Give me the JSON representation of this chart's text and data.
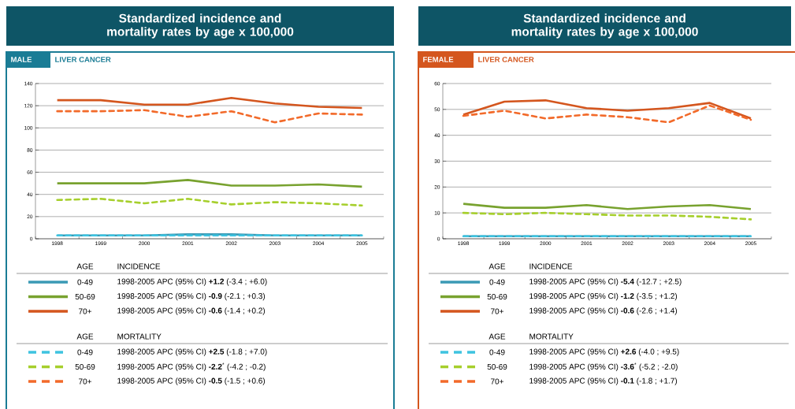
{
  "chart_data": [
    {
      "type": "line",
      "title": "Standardized incidence and mortality rates by age x 100,000",
      "subtitle": "MALE",
      "annotations": [
        "LIVER CANCER",
        "AGE",
        "INCIDENCE",
        "1998-2005 APC (95% CI) **+1.2**  (-3.4 ; +6.0)",
        "1998-2005 APC (95% CI)  **-0.9**  (-2.1 ; +0.3)",
        "1998-2005 APC (95% CI)  **-0.6**  (-1.4 ; +0.2)",
        "AGE",
        "MORTALITY",
        "1998-2005 APC (95% CI) **+2.5**  (-1.8 ; +7.0)",
        "1998-2005 APC (95% CI)  **-2.2**$^{*}$ (-4.2 ; -0.2)",
        "1998-2005 APC (95% CI)  **-0.5**  (-1.5 ; +0.6)"
      ],
      "categories": [
        "1998",
        "1999",
        "2000",
        "2001",
        "2002",
        "2003",
        "2004",
        "2005"
      ],
      "series": [
        {
          "name": "0-49",
          "color": "#3a9ab5",
          "line_style": "solid",
          "values": [
            3,
            3,
            3,
            4,
            4,
            3,
            3,
            3
          ]
        },
        {
          "name": "50-69",
          "color": "#78a22f",
          "line_style": "solid",
          "values": [
            50,
            50,
            50,
            53,
            48,
            48,
            49,
            47
          ]
        },
        {
          "name": "70+",
          "color": "#d4561e",
          "line_style": "solid",
          "values": [
            125,
            125,
            121,
            121,
            127,
            122,
            119,
            118
          ]
        },
        {
          "name": "0-49",
          "color": "#3ec3e0",
          "line_style": "dashed",
          "values": [
            3,
            3,
            3,
            3,
            3,
            3,
            3,
            3
          ]
        },
        {
          "name": "50-69",
          "color": "#a6cf2c",
          "line_style": "dashed",
          "values": [
            35,
            36,
            32,
            36,
            31,
            33,
            32,
            30
          ]
        },
        {
          "name": "70+",
          "color": "#f26a2a",
          "line_style": "dashed",
          "values": [
            115,
            115,
            116,
            110,
            115,
            105,
            113,
            112
          ]
        }
      ],
      "ylim": [
        0,
        140
      ],
      "yticks": [
        0,
        20,
        40,
        60,
        80,
        100,
        120,
        140
      ],
      "grid": "y",
      "legend": "bottom"
    },
    {
      "type": "line",
      "title": "Standardized incidence and mortality rates by age x 100,000",
      "subtitle": "FEMALE",
      "annotations": [
        "LIVER CANCER",
        "AGE",
        "INCIDENCE",
        "1998-2005 APC (95% CI)  **-5.4**  (-12.7 ; +2.5)",
        "1998-2005 APC (95% CI)  **-1.2**  (-3.5 ; +1.2)",
        "1998-2005 APC (95% CI)  **-0.6**  (-2.6 ; +1.4)",
        "AGE",
        "MORTALITY",
        "1998-2005 APC (95% CI) **+2.6**  (-4.0 ; +9.5)",
        "1998-2005 APC (95% CI)  **-3.6**$^{*}$ (-5.2 ; -2.0)",
        "1998-2005 APC (95% CI)  **-0.1**  (-1.8 ; +1.7)"
      ],
      "categories": [
        "1998",
        "1999",
        "2000",
        "2001",
        "2002",
        "2003",
        "2004",
        "2005"
      ],
      "series": [
        {
          "name": "0-49",
          "color": "#3a9ab5",
          "line_style": "solid",
          "values": [
            1,
            1,
            1,
            1,
            1,
            1,
            1,
            1
          ]
        },
        {
          "name": "50-69",
          "color": "#78a22f",
          "line_style": "solid",
          "values": [
            13.5,
            12,
            12,
            13,
            11.5,
            12.5,
            13,
            11.5
          ]
        },
        {
          "name": "70+",
          "color": "#d4561e",
          "line_style": "solid",
          "values": [
            48,
            53,
            53.5,
            50.5,
            49.5,
            50.5,
            52.5,
            46.5
          ]
        },
        {
          "name": "0-49",
          "color": "#3ec3e0",
          "line_style": "dashed",
          "values": [
            1,
            1,
            1,
            1,
            1,
            1,
            1,
            1
          ]
        },
        {
          "name": "50-69",
          "color": "#a6cf2c",
          "line_style": "dashed",
          "values": [
            10,
            9.5,
            10,
            9.5,
            9,
            9,
            8.5,
            7.5
          ]
        },
        {
          "name": "70+",
          "color": "#f26a2a",
          "line_style": "dashed",
          "values": [
            47.5,
            49.5,
            46.5,
            48,
            47,
            45,
            51.5,
            46
          ]
        }
      ],
      "ylim": [
        0,
        60
      ],
      "yticks": [
        0,
        10,
        20,
        30,
        40,
        50,
        60
      ],
      "grid": "y",
      "legend": "bottom"
    }
  ]
}
